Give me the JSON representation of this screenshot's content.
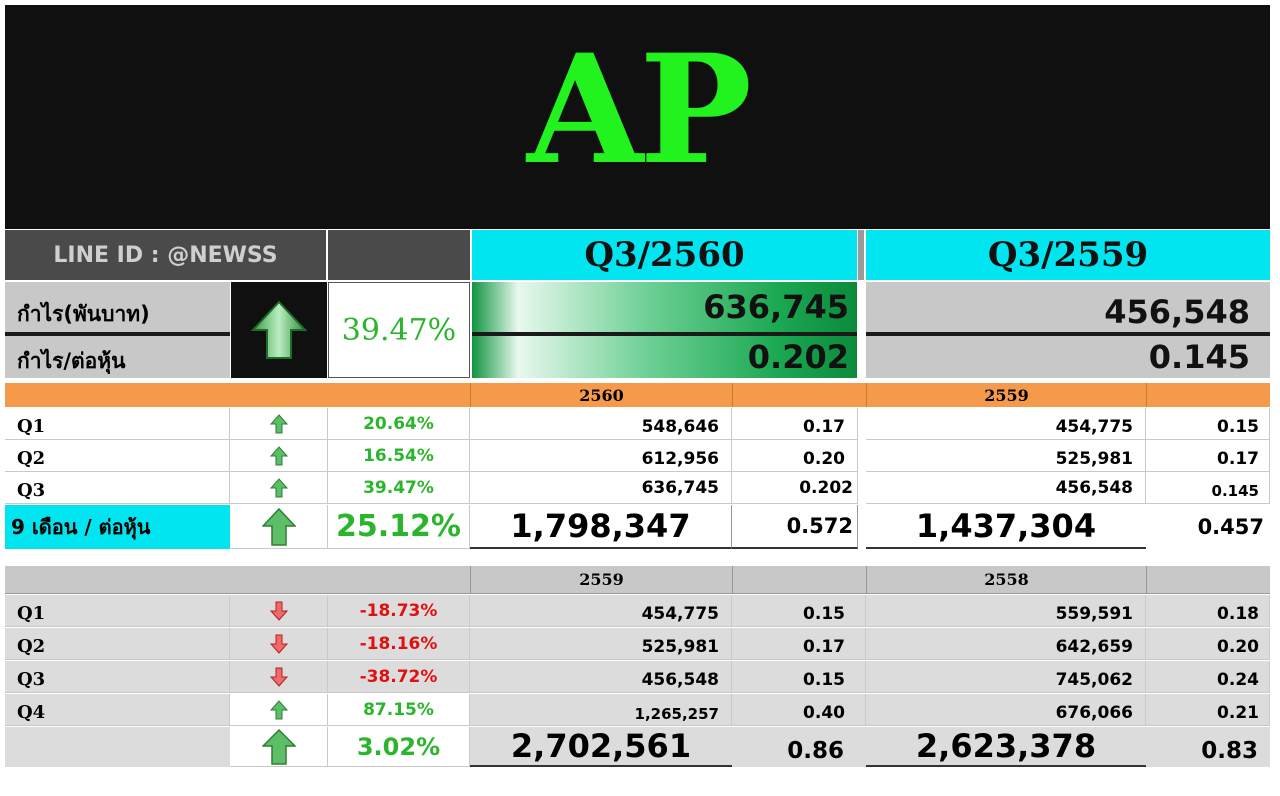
{
  "title": "AP",
  "line_id": "LINE ID : @NEWSS",
  "top": {
    "col_a": "Q3/2560",
    "col_b": "Q3/2559",
    "row_profit_label": "กำไร(พันบาท)",
    "row_eps_label": "กำไร/ต่อหุ้น",
    "change": "39.47%",
    "profit_a": "636,745",
    "eps_a": "0.202",
    "profit_b": "456,548",
    "eps_b": "0.145"
  },
  "table1": {
    "year_a": "2560",
    "year_b": "2559",
    "rows": [
      {
        "label": "Q1",
        "change": "20.64%",
        "dir": "up",
        "a": "548,646",
        "a_eps": "0.17",
        "b": "454,775",
        "b_eps": "0.15"
      },
      {
        "label": "Q2",
        "change": "16.54%",
        "dir": "up",
        "a": "612,956",
        "a_eps": "0.20",
        "b": "525,981",
        "b_eps": "0.17"
      },
      {
        "label": "Q3",
        "change": "39.47%",
        "dir": "up",
        "a": "636,745",
        "a_eps": "0.202",
        "b": "456,548",
        "b_eps": "0.145"
      }
    ],
    "total": {
      "label": "9 เดือน / ต่อหุ้น",
      "change": "25.12%",
      "a": "1,798,347",
      "a_eps": "0.572",
      "b": "1,437,304",
      "b_eps": "0.457"
    }
  },
  "table2": {
    "year_a": "2559",
    "year_b": "2558",
    "rows": [
      {
        "label": "Q1",
        "change": "-18.73%",
        "dir": "down",
        "a": "454,775",
        "a_eps": "0.15",
        "b": "559,591",
        "b_eps": "0.18"
      },
      {
        "label": "Q2",
        "change": "-18.16%",
        "dir": "down",
        "a": "525,981",
        "a_eps": "0.17",
        "b": "642,659",
        "b_eps": "0.20"
      },
      {
        "label": "Q3",
        "change": "-38.72%",
        "dir": "down",
        "a": "456,548",
        "a_eps": "0.15",
        "b": "745,062",
        "b_eps": "0.24"
      },
      {
        "label": "Q4",
        "change": "87.15%",
        "dir": "up",
        "a": "1,265,257",
        "a_eps": "0.40",
        "b": "676,066",
        "b_eps": "0.21"
      }
    ],
    "total": {
      "change": "3.02%",
      "a": "2,702,561",
      "a_eps": "0.86",
      "b": "2,623,378",
      "b_eps": "0.83"
    }
  },
  "colors": {
    "banner": "#101010",
    "logo": "#22f21e",
    "cyan": "#00e5f0",
    "orange": "#f59a4a",
    "up": "#2bb52b",
    "down": "#e01010"
  }
}
